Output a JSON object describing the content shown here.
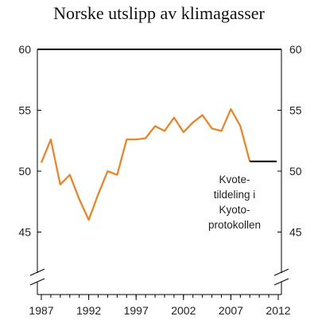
{
  "chart_data": {
    "type": "line",
    "title": "Norske utslipp av klimagasser",
    "xlabel": "",
    "ylabel": "",
    "xlim": [
      1987,
      2012
    ],
    "ylim": [
      40,
      60
    ],
    "y_ticks": [
      45,
      50,
      55,
      60
    ],
    "x_ticks": [
      1987,
      1992,
      1997,
      2002,
      2007,
      2012
    ],
    "series": [
      {
        "color": "#f07f1d",
        "x": [
          1987,
          1988,
          1989,
          1990,
          1991,
          1992,
          1993,
          1994,
          1995,
          1996,
          1997,
          1998,
          1999,
          2000,
          2001,
          2002,
          2003,
          2004,
          2005,
          2006,
          2007,
          2008,
          2009
        ],
        "y": [
          50.7,
          52.6,
          48.9,
          49.7,
          47.7,
          46.0,
          48.1,
          50.0,
          49.7,
          52.6,
          52.6,
          52.7,
          53.7,
          53.3,
          54.4,
          53.2,
          54.0,
          54.6,
          53.5,
          53.3,
          55.1,
          53.7,
          50.8
        ]
      }
    ],
    "kyoto_target": {
      "value": 50.8,
      "from": 2009,
      "to": 2012,
      "color": "#000000"
    },
    "annotation": {
      "lines": [
        "Kvote-",
        "tildeling i",
        "Kyoto-",
        "protokollen"
      ]
    },
    "axis_break": true,
    "grid": false
  }
}
